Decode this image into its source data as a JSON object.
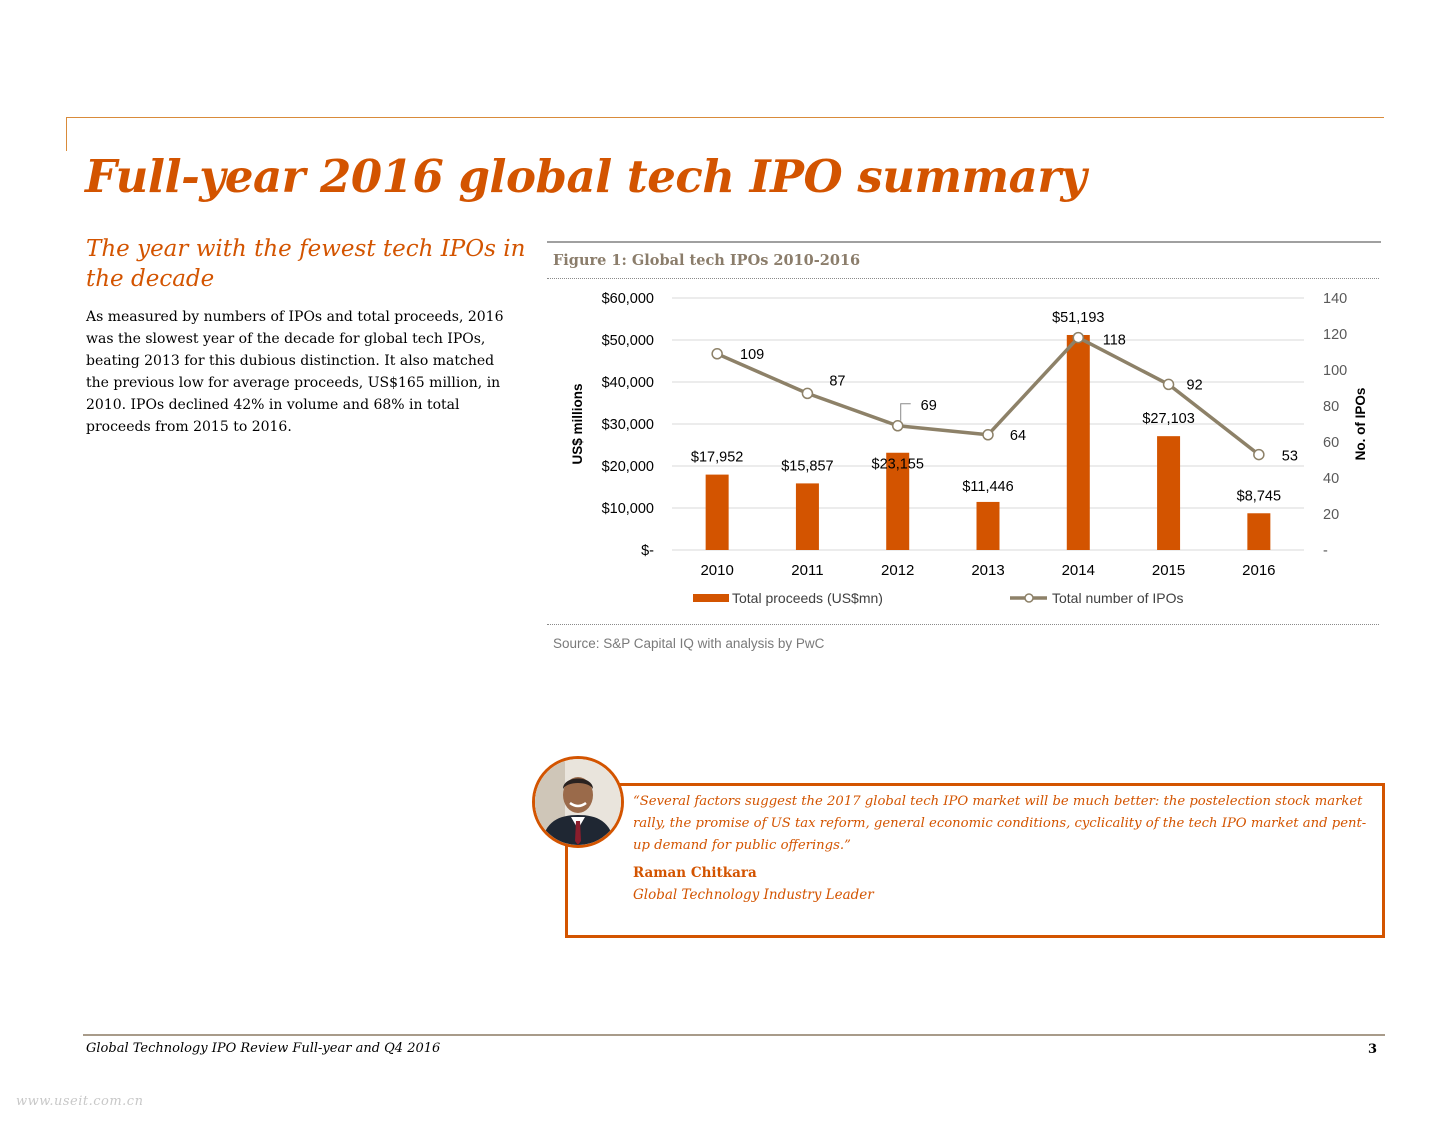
{
  "page": {
    "title": "Full-year 2016 global tech IPO summary",
    "subtitle": "The year with the fewest tech IPOs in the decade",
    "body": "As measured by numbers of IPOs and total proceeds, 2016 was the slowest year of the decade for global tech IPOs, beating 2013 for this dubious distinction. It also matched the previous low for average proceeds, US$165 million, in 2010. IPOs declined 42% in volume and 68% in total proceeds from 2015 to 2016."
  },
  "figure": {
    "title": "Figure 1: Global tech IPOs 2010-2016",
    "source": "Source: S&P Capital IQ with analysis by PwC"
  },
  "chart_data": {
    "type": "bar",
    "title": "Figure 1: Global tech IPOs 2010-2016",
    "categories": [
      "2010",
      "2011",
      "2012",
      "2013",
      "2014",
      "2015",
      "2016"
    ],
    "ylabel": "US$ millions",
    "y2label": "No. of IPOs",
    "ylim": [
      0,
      60000
    ],
    "y2lim": [
      0,
      140
    ],
    "y_ticks": [
      0,
      10000,
      20000,
      30000,
      40000,
      50000,
      60000
    ],
    "y_tick_labels": [
      "$-",
      "$10,000",
      "$20,000",
      "$30,000",
      "$40,000",
      "$50,000",
      "$60,000"
    ],
    "y2_ticks": [
      0,
      20,
      40,
      60,
      80,
      100,
      120,
      140
    ],
    "y2_tick_labels": [
      "-",
      "20",
      "40",
      "60",
      "80",
      "100",
      "120",
      "140"
    ],
    "grid": true,
    "legend_position": "bottom",
    "series": [
      {
        "name": "Total proceeds (US$mn)",
        "kind": "bar",
        "axis": "left",
        "color": "#d35400",
        "values": [
          17952,
          15857,
          23155,
          11446,
          51193,
          27103,
          8745
        ],
        "labels": [
          "$17,952",
          "$15,857",
          "$23,155",
          "$11,446",
          "$51,193",
          "$27,103",
          "$8,745"
        ]
      },
      {
        "name": "Total number of IPOs",
        "kind": "line",
        "axis": "right",
        "color": "#8d8168",
        "values": [
          109,
          87,
          69,
          64,
          118,
          92,
          53
        ],
        "labels": [
          "109",
          "87",
          "69",
          "64",
          "118",
          "92",
          "53"
        ]
      }
    ]
  },
  "quote": {
    "text": "“Several factors suggest the 2017 global tech IPO market will be much better: the postelection stock market rally, the promise of US tax reform, general economic conditions, cyclicality of the tech IPO market and pent-up demand for public offerings.”",
    "name": "Raman Chitkara",
    "role": "Global Technology Industry Leader"
  },
  "footer": {
    "text": "Global Technology IPO Review Full-year and Q4 2016",
    "page_number": "3",
    "watermark": "www.useit.com.cn"
  },
  "colors": {
    "accent": "#d35400",
    "line": "#8d8168",
    "rule": "#d98b3a"
  }
}
